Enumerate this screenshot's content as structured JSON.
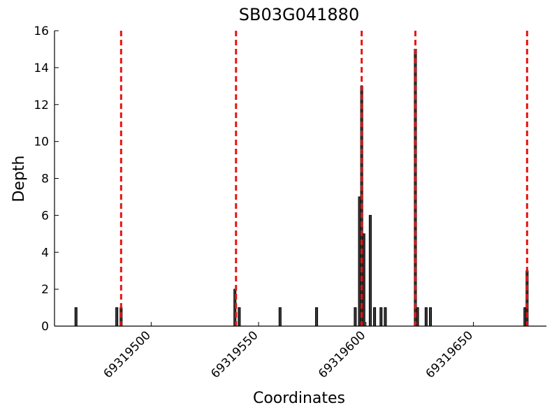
{
  "chart_data": {
    "type": "bar",
    "title": "SB03G041880",
    "xlabel": "Coordinates",
    "ylabel": "Depth",
    "x": [
      69319465,
      69319484,
      69319486,
      69319539,
      69319541,
      69319560,
      69319577,
      69319595,
      69319597,
      69319598,
      69319599,
      69319602,
      69319604,
      69319607,
      69319609,
      69319623,
      69319624,
      69319628,
      69319630,
      69319674,
      69319675
    ],
    "values": [
      1,
      1,
      1,
      2,
      1,
      1,
      1,
      1,
      7,
      13,
      5,
      6,
      1,
      1,
      1,
      15,
      1,
      1,
      1,
      1,
      3
    ],
    "color": "#3a3a3a",
    "vlines": [
      69319486,
      69319539.5,
      69319598,
      69319623,
      69319675
    ],
    "vline_color": "#e8130f",
    "xlim": [
      69319455,
      69319684
    ],
    "xticks": [
      69319500,
      69319550,
      69319600,
      69319650
    ],
    "ylim": [
      0,
      16
    ],
    "yticks": [
      0,
      2,
      4,
      6,
      8,
      10,
      12,
      14,
      16
    ],
    "grid": false
  }
}
